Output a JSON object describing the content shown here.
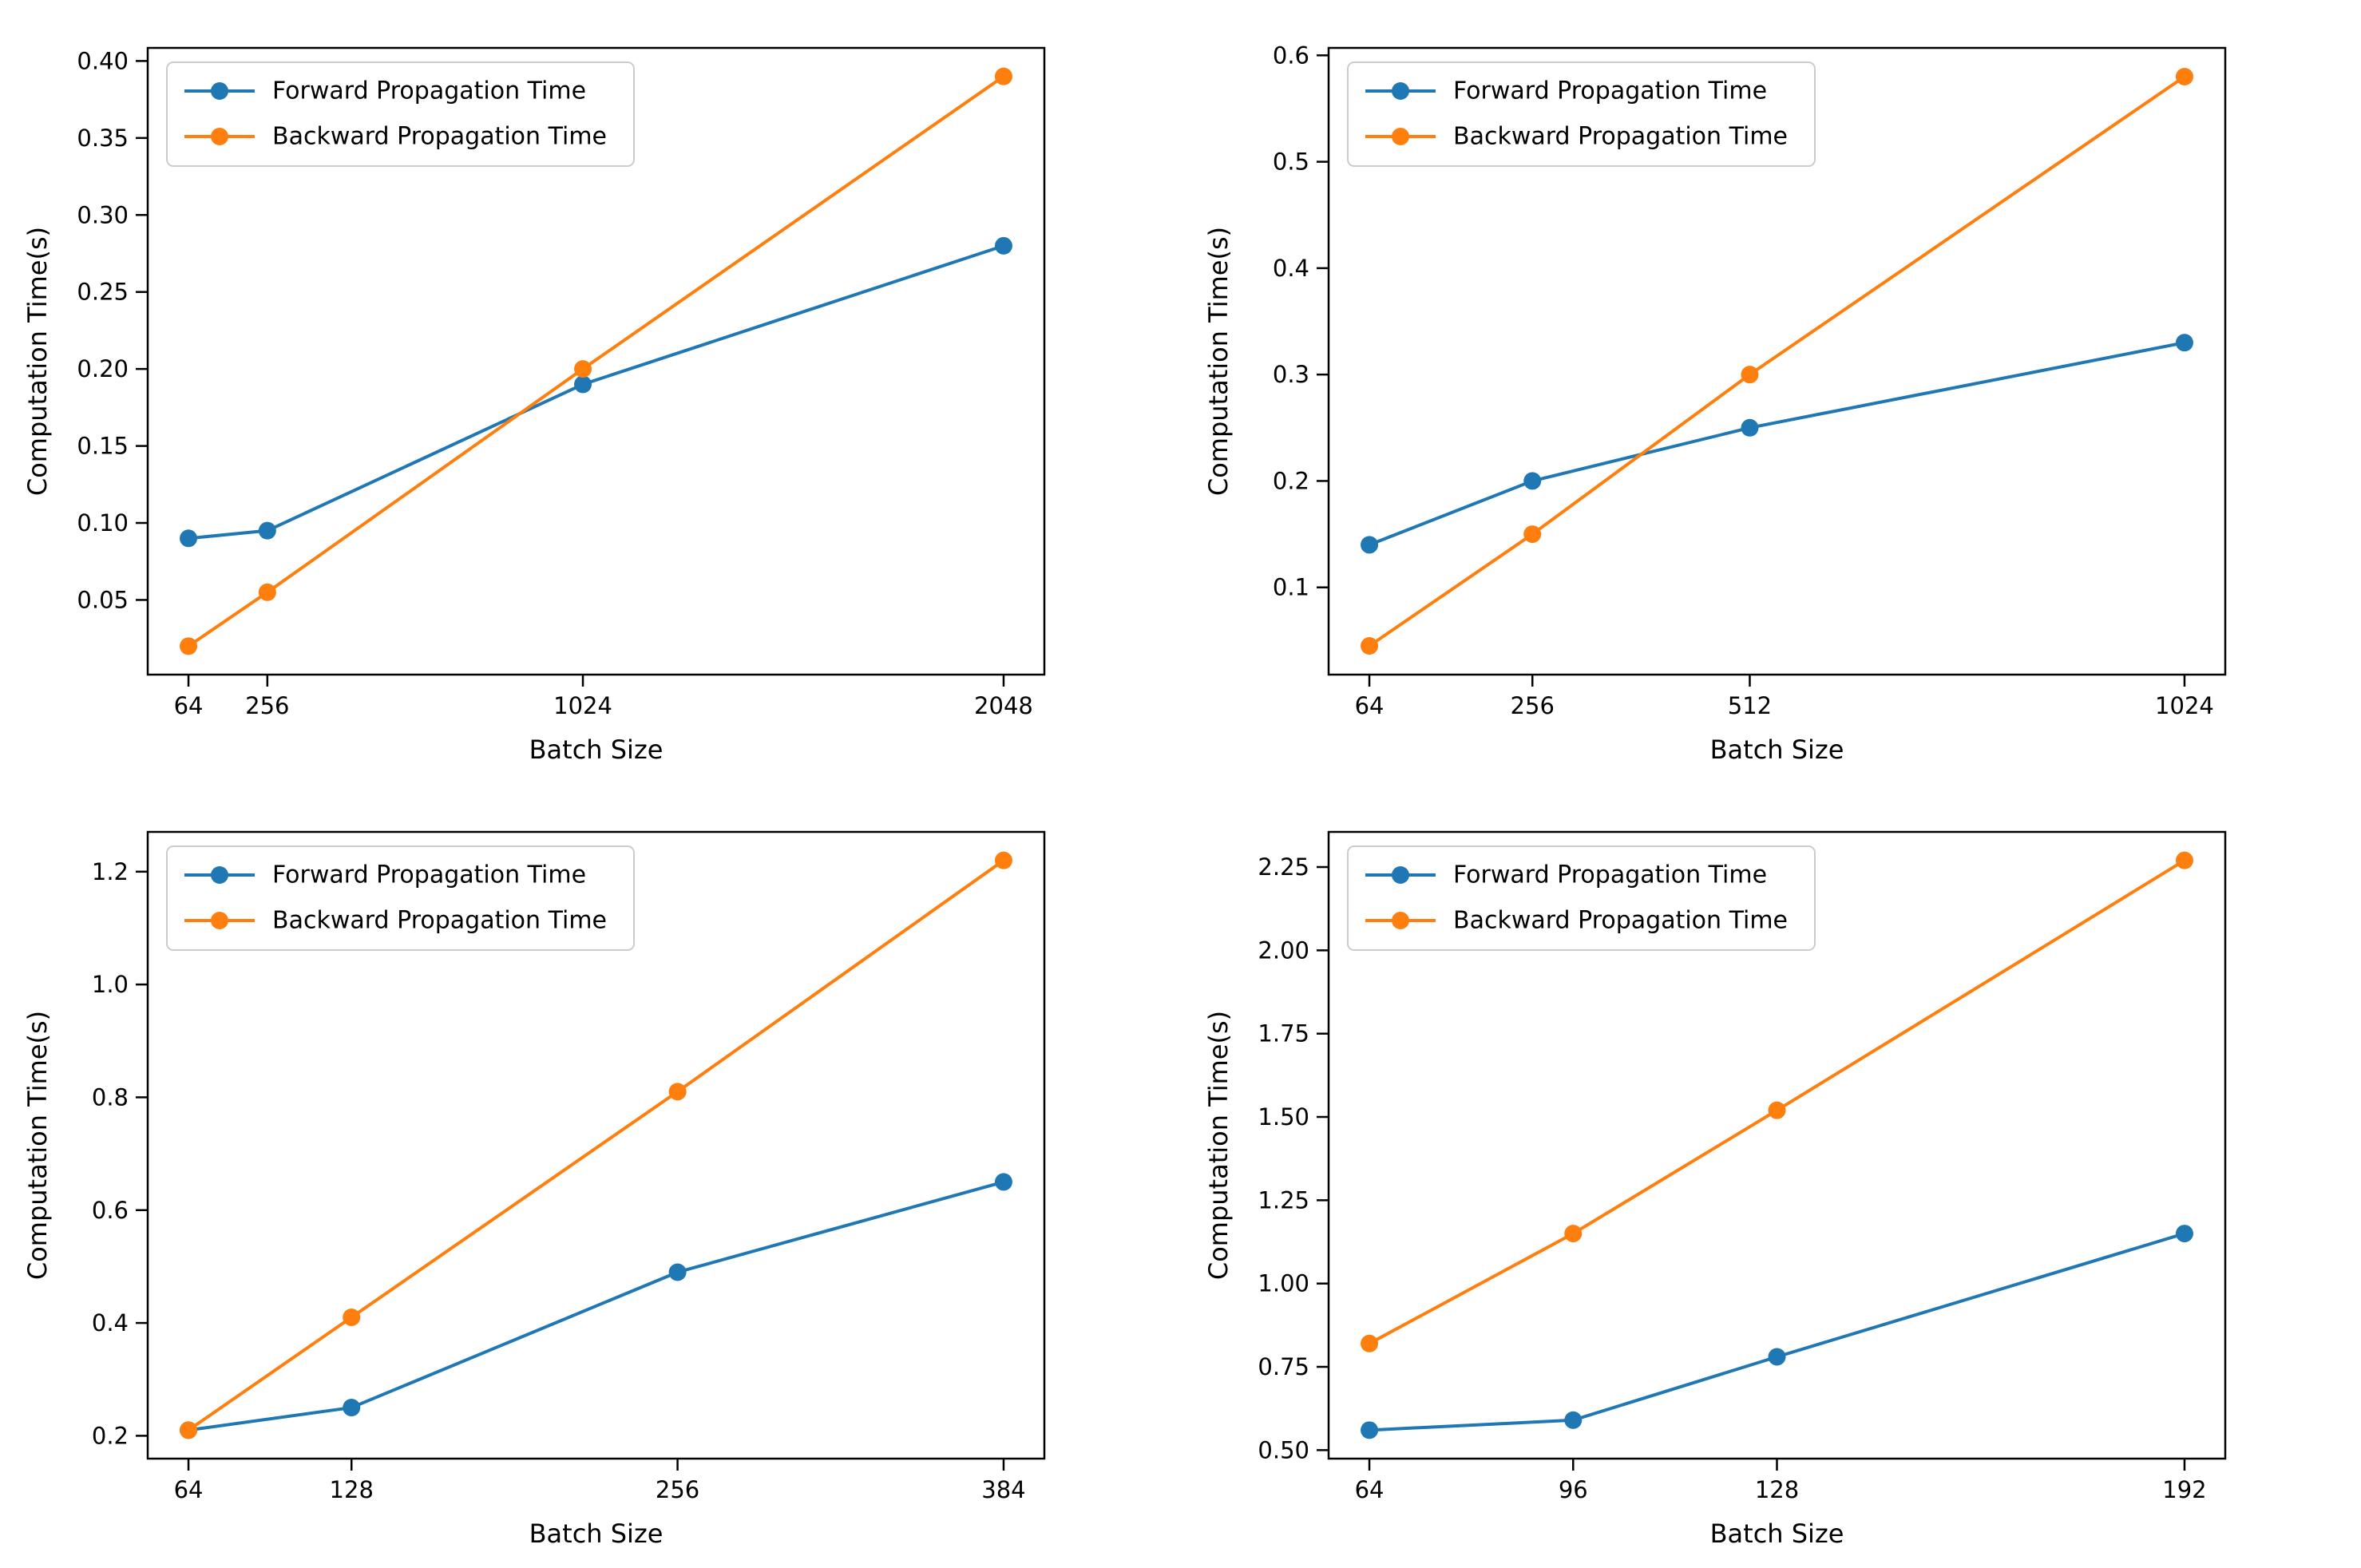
{
  "figure": {
    "background": "#ffffff",
    "rows": 2,
    "cols": 2
  },
  "shared": {
    "xlabel": "Batch Size",
    "ylabel": "Computation Time(s)",
    "legend_position": "upper left",
    "legend_entries": [
      "Forward Propagation Time",
      "Backward Propagation Time"
    ],
    "colors": {
      "forward": "#1f77b4",
      "backward": "#ff7f0e",
      "spine": "#000000",
      "legend_border": "#cccccc",
      "legend_background": "#ffffff"
    }
  },
  "chart_data": [
    {
      "type": "line",
      "position": "top-left",
      "title": "",
      "xlabel": "Batch Size",
      "ylabel": "Computation Time(s)",
      "x": [
        64,
        256,
        1024,
        2048
      ],
      "x_tick_labels": [
        "64",
        "256",
        "1024",
        "2048"
      ],
      "y_ticks": [
        0.05,
        0.1,
        0.15,
        0.2,
        0.25,
        0.3,
        0.35,
        0.4
      ],
      "y_tick_labels": [
        "0.05",
        "0.10",
        "0.15",
        "0.20",
        "0.25",
        "0.30",
        "0.35",
        "0.40"
      ],
      "xlim": [
        -35.2,
        2147.2
      ],
      "ylim": [
        0.0015,
        0.4085
      ],
      "grid": false,
      "legend_position": "upper left",
      "series": [
        {
          "name": "Forward Propagation Time",
          "color": "#1f77b4",
          "values": [
            0.09,
            0.095,
            0.19,
            0.28
          ]
        },
        {
          "name": "Backward Propagation Time",
          "color": "#ff7f0e",
          "values": [
            0.02,
            0.055,
            0.2,
            0.39
          ]
        }
      ]
    },
    {
      "type": "line",
      "position": "top-right",
      "title": "",
      "xlabel": "Batch Size",
      "ylabel": "Computation Time(s)",
      "x": [
        64,
        256,
        512,
        1024
      ],
      "x_tick_labels": [
        "64",
        "256",
        "512",
        "1024"
      ],
      "y_ticks": [
        0.1,
        0.2,
        0.3,
        0.4,
        0.5,
        0.6
      ],
      "y_tick_labels": [
        "0.1",
        "0.2",
        "0.3",
        "0.4",
        "0.5",
        "0.6"
      ],
      "xlim": [
        16,
        1072
      ],
      "ylim": [
        0.018,
        0.607
      ],
      "grid": false,
      "legend_position": "upper left",
      "series": [
        {
          "name": "Forward Propagation Time",
          "color": "#1f77b4",
          "values": [
            0.14,
            0.2,
            0.25,
            0.33
          ]
        },
        {
          "name": "Backward Propagation Time",
          "color": "#ff7f0e",
          "values": [
            0.045,
            0.15,
            0.3,
            0.58
          ]
        }
      ]
    },
    {
      "type": "line",
      "position": "bottom-left",
      "title": "",
      "xlabel": "Batch Size",
      "ylabel": "Computation Time(s)",
      "x": [
        64,
        128,
        256,
        384
      ],
      "x_tick_labels": [
        "64",
        "128",
        "256",
        "384"
      ],
      "y_ticks": [
        0.2,
        0.4,
        0.6,
        0.8,
        1.0,
        1.2
      ],
      "y_tick_labels": [
        "0.2",
        "0.4",
        "0.6",
        "0.8",
        "1.0",
        "1.2"
      ],
      "xlim": [
        48,
        400
      ],
      "ylim": [
        0.1595,
        1.2705
      ],
      "grid": false,
      "legend_position": "upper left",
      "series": [
        {
          "name": "Forward Propagation Time",
          "color": "#1f77b4",
          "values": [
            0.21,
            0.25,
            0.49,
            0.65
          ]
        },
        {
          "name": "Backward Propagation Time",
          "color": "#ff7f0e",
          "values": [
            0.21,
            0.41,
            0.81,
            1.22
          ]
        }
      ]
    },
    {
      "type": "line",
      "position": "bottom-right",
      "title": "",
      "xlabel": "Batch Size",
      "ylabel": "Computation Time(s)",
      "x": [
        64,
        96,
        128,
        192
      ],
      "x_tick_labels": [
        "64",
        "96",
        "128",
        "192"
      ],
      "y_ticks": [
        0.5,
        0.75,
        1.0,
        1.25,
        1.5,
        1.75,
        2.0,
        2.25
      ],
      "y_tick_labels": [
        "0.50",
        "0.75",
        "1.00",
        "1.25",
        "1.50",
        "1.75",
        "2.00",
        "2.25"
      ],
      "xlim": [
        57.6,
        198.4
      ],
      "ylim": [
        0.4745,
        2.3555
      ],
      "grid": false,
      "legend_position": "upper left",
      "series": [
        {
          "name": "Forward Propagation Time",
          "color": "#1f77b4",
          "values": [
            0.56,
            0.59,
            0.78,
            1.15
          ]
        },
        {
          "name": "Backward Propagation Time",
          "color": "#ff7f0e",
          "values": [
            0.82,
            1.15,
            1.52,
            2.27
          ]
        }
      ]
    }
  ]
}
